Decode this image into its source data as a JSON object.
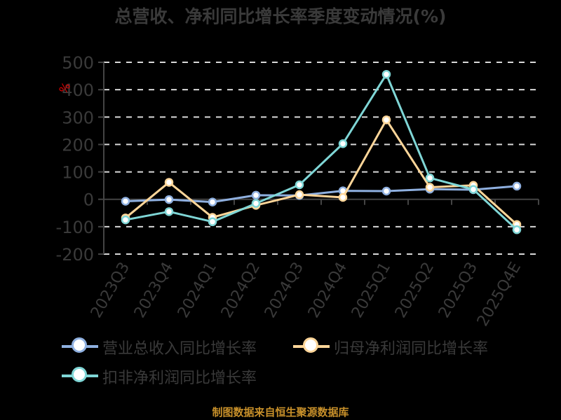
{
  "title": "总营收、净利同比增长率季度变动情况(%)",
  "source_note": "制图数据来自恒生聚源数据库",
  "y_unit": "%",
  "legend": [
    {
      "label": "营业总收入同比增长率",
      "color": "#8fb0e0"
    },
    {
      "label": "归母净利润同比增长率",
      "color": "#ffd699"
    },
    {
      "label": "扣非净利润同比增长率",
      "color": "#7fd6d6"
    }
  ],
  "chart_data": {
    "type": "line",
    "title": "总营收、净利同比增长率季度变动情况(%)",
    "xlabel": "",
    "ylabel": "%",
    "categories": [
      "2023Q3",
      "2023Q4",
      "2024Q1",
      "2024Q2",
      "2024Q3",
      "2024Q4",
      "2025Q1",
      "2025Q2",
      "2025Q3",
      "2025Q4E"
    ],
    "series": [
      {
        "name": "营业总收入同比增长率",
        "color": "#8fb0e0",
        "values": [
          -7,
          -1,
          -10,
          15,
          14,
          31,
          30,
          37,
          35,
          48
        ]
      },
      {
        "name": "归母净利润同比增长率",
        "color": "#ffd699",
        "values": [
          -68,
          62,
          -66,
          -22,
          17,
          7,
          290,
          44,
          51,
          -92
        ]
      },
      {
        "name": "扣非净利润同比增长率",
        "color": "#7fd6d6",
        "values": [
          -75,
          -45,
          -82,
          -15,
          53,
          203,
          456,
          78,
          36,
          -111
        ]
      }
    ],
    "ylim": [
      -200,
      500
    ],
    "yticks": [
      500,
      400,
      300,
      200,
      100,
      0,
      -100,
      -200
    ],
    "grid": true,
    "legend_position": "bottom"
  }
}
